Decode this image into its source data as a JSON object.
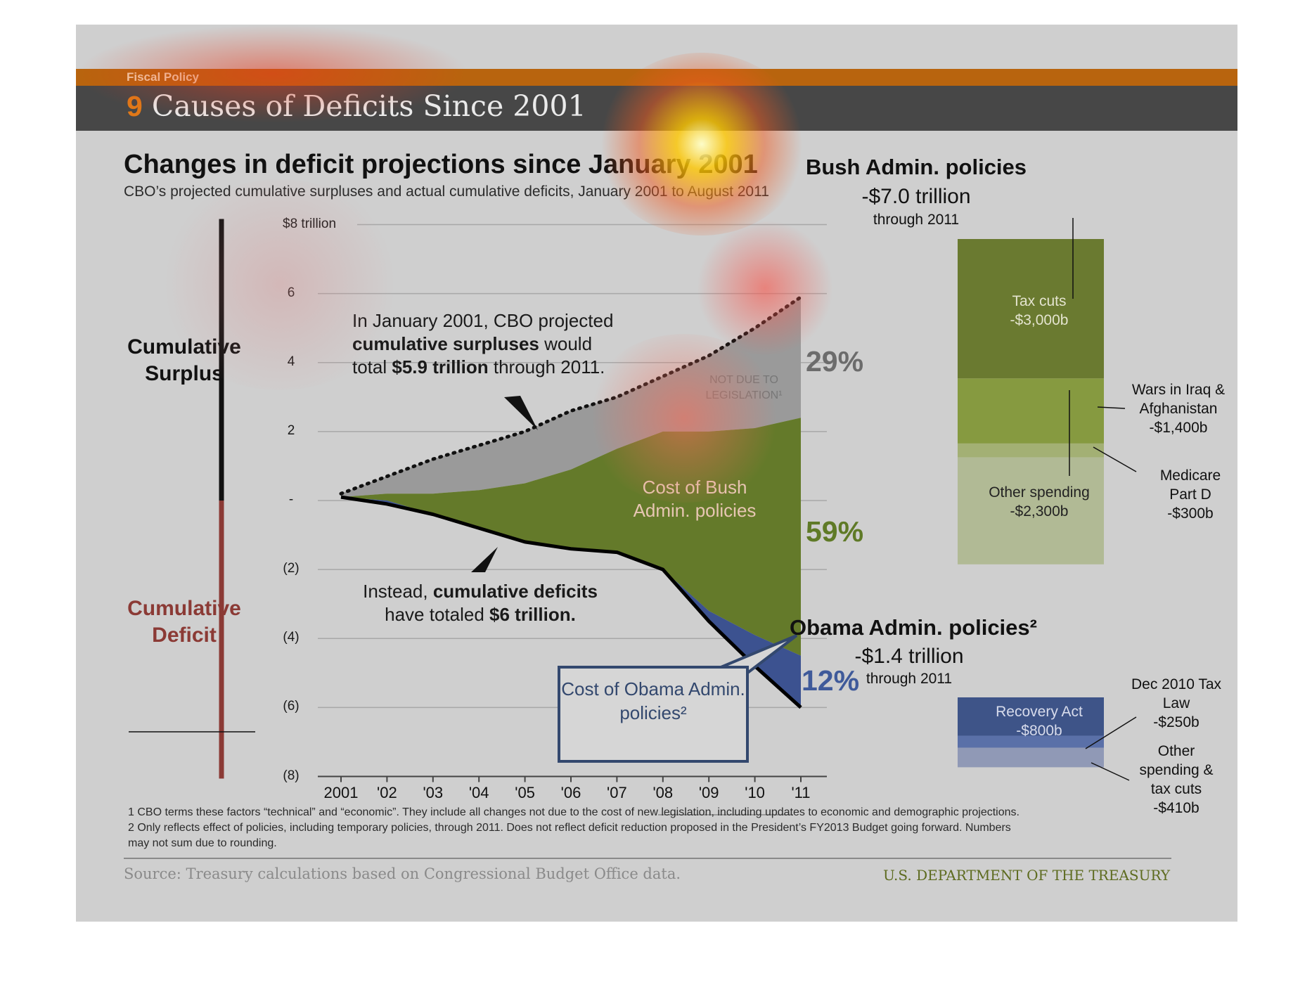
{
  "header": {
    "kicker": "Fiscal Policy",
    "title_number": "9",
    "title_text": " Causes of Deficits Since 2001"
  },
  "chart": {
    "title": "Changes in deficit projections since January 2001",
    "subtitle": "CBO’s projected cumulative surpluses and actual cumulative deficits, January 2001 to August 2011",
    "y_unit_label": "$8 trillion",
    "y_tick_labels": [
      "6",
      "4",
      "2",
      "-",
      "(2)",
      "(4)",
      "(6)",
      "(8)"
    ],
    "x_tick_labels": [
      "2001",
      "'02",
      "'03",
      "'04",
      "'05",
      "'06",
      "'07",
      "'08",
      "'09",
      "'10",
      "'11"
    ],
    "surplus_label": "Cumulative Surplus",
    "deficit_label": "Cumulative Deficit",
    "annotation_surplus": {
      "pre": "In January 2001, CBO projected",
      "bold1": "cumulative surpluses",
      "mid": " would",
      "pre2": "total ",
      "bold2": "$5.9 trillion",
      "post2": " through 2011."
    },
    "annotation_deficit": {
      "pre": "Instead, ",
      "bold1": "cumulative deficits",
      "pre2": "have totaled ",
      "bold2": "$6 trillion."
    },
    "not_due_label": "NOT DUE TO LEGISLATION¹",
    "bush_cost_label": "Cost of Bush Admin. policies",
    "obama_cost_label": "Cost of Obama Admin. policies²",
    "pct_not_due": "29%",
    "pct_bush": "59%",
    "pct_obama": "12%",
    "colors": {
      "not_due": "#9a9a9a",
      "bush": "#647a2a",
      "obama": "#3c5290",
      "deficit_accent": "#8b3a35",
      "surplus_accent": "#111111"
    }
  },
  "chart_data": {
    "type": "area",
    "x": [
      2001,
      2002,
      2003,
      2004,
      2005,
      2006,
      2007,
      2008,
      2009,
      2010,
      2011
    ],
    "ylim": [
      -8,
      8
    ],
    "grid": true,
    "series": [
      {
        "name": "Cumulative Surplus",
        "values": [
          0.2,
          0.7,
          1.2,
          1.6,
          2.0,
          2.6,
          3.0,
          3.6,
          4.2,
          5.0,
          5.9
        ]
      },
      {
        "values": [
          0.1,
          0.2,
          0.2,
          0.3,
          0.5,
          0.9,
          1.5,
          2.0,
          2.0,
          2.1,
          2.4
        ]
      },
      {
        "values": [
          0.1,
          0.0,
          -0.4,
          -0.8,
          -1.2,
          -1.4,
          -1.5,
          -2.0,
          -3.2,
          -3.9,
          -4.5
        ]
      },
      {
        "name": "Cumulative Deficit",
        "values": [
          0.1,
          -0.1,
          -0.4,
          -0.8,
          -1.2,
          -1.4,
          -1.5,
          -2.0,
          -3.5,
          -4.8,
          -6.0
        ]
      }
    ],
    "shares": {
      "not_due": 29,
      "bush": 59,
      "obama": 12
    }
  },
  "bush": {
    "title": "Bush Admin. policies",
    "total": "-$7.0 trillion",
    "period": "through 2011",
    "segments": [
      {
        "label": "Tax cuts",
        "value": "-$3,000b",
        "amount": 3000,
        "color": "#6a7a30",
        "text_color": "#e4e4cf"
      },
      {
        "label": "Wars in Iraq  & Afghanistan",
        "value": "-$1,400b",
        "amount": 1400,
        "color": "#869a40",
        "text_color": "#111111"
      },
      {
        "label": "Medicare Part D",
        "value": "-$300b",
        "amount": 300,
        "color": "#a3b074",
        "text_color": "#111111"
      },
      {
        "label": "Other spending",
        "value": "-$2,300b",
        "amount": 2300,
        "color": "#b1ba95",
        "text_color": "#222222"
      }
    ]
  },
  "obama": {
    "title": "Obama Admin. policies²",
    "total": "-$1.4 trillion",
    "period": "through 2011",
    "segments": [
      {
        "label": "Recovery Act",
        "value": "-$800b",
        "amount": 800,
        "color": "#3e5488",
        "text_color": "#d8dcec"
      },
      {
        "label": "Dec 2010 Tax Law",
        "value": "-$250b",
        "amount": 250,
        "color": "#5a70a8",
        "text_color": "#111111"
      },
      {
        "label": "Other spending & tax cuts",
        "value": "-$410b",
        "amount": 410,
        "color": "#9099b6",
        "text_color": "#111111"
      }
    ]
  },
  "footnotes": {
    "note1": "1 CBO terms these factors “technical” and “economic”. They include all changes not due to the cost of new legislation, including updates to economic and demographic projections.",
    "note2a": "2 Only reflects effect of policies, including temporary policies, through 2011. Does not reflect deficit reduction proposed in the President’s FY2013 Budget going forward. Numbers",
    "note2b": "may not sum due to rounding."
  },
  "source": "Source: Treasury calculations based on Congressional Budget Office data.",
  "agency": "U.S. DEPARTMENT OF THE TREASURY"
}
